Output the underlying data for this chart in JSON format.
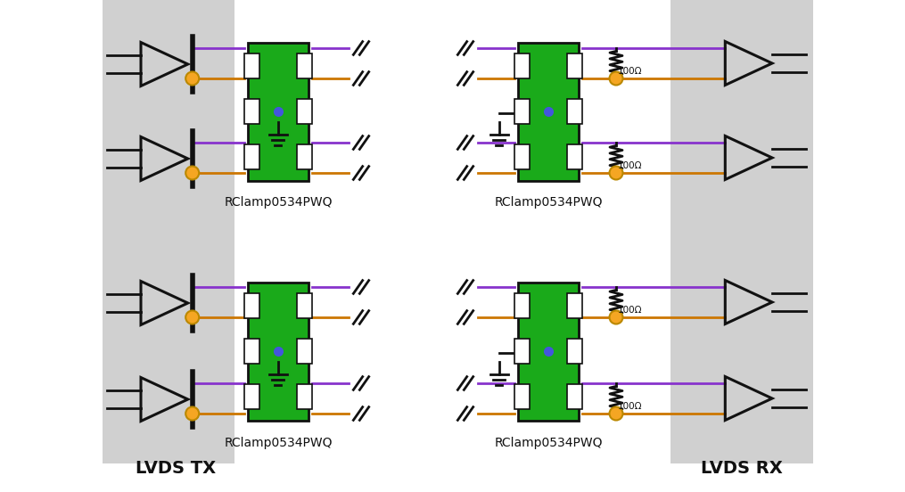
{
  "bg_color": "#ffffff",
  "gray_bg_color": "#d0d0d0",
  "green_color": "#1aaa1a",
  "purple_color": "#8833cc",
  "orange_color": "#cc7700",
  "gold_color": "#f5a623",
  "black_color": "#111111",
  "white_color": "#ffffff",
  "title_label_tx": "LVDS TX",
  "title_label_rx": "LVDS RX",
  "rclamp_label": "RClamp0534PWQ",
  "resistor_label": "100Ω",
  "fig_width": 10.15,
  "fig_height": 5.52,
  "dpi": 100
}
